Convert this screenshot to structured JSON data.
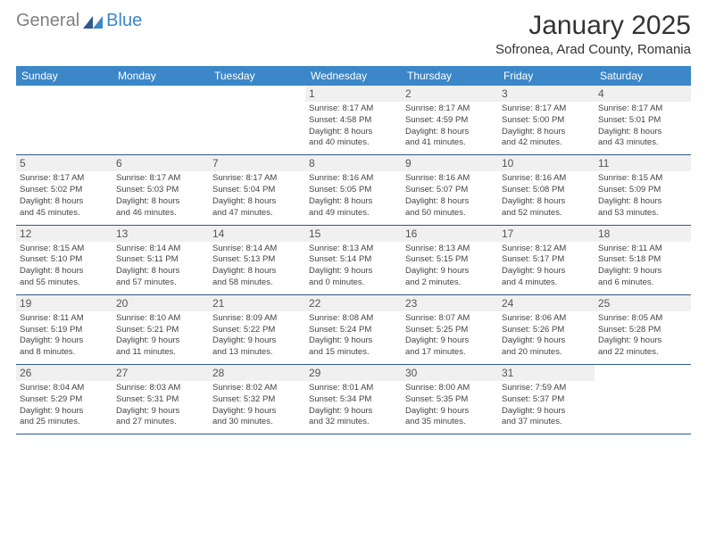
{
  "logo": {
    "general": "General",
    "blue": "Blue"
  },
  "title": "January 2025",
  "location": "Sofronea, Arad County, Romania",
  "weekdays": [
    "Sunday",
    "Monday",
    "Tuesday",
    "Wednesday",
    "Thursday",
    "Friday",
    "Saturday"
  ],
  "colors": {
    "header_blue": "#3b87c8",
    "divider": "#2d5a8a",
    "cell_bg": "#f0f0f0",
    "text": "#333333"
  },
  "weeks": [
    [
      {
        "day": "",
        "lines": []
      },
      {
        "day": "",
        "lines": []
      },
      {
        "day": "",
        "lines": []
      },
      {
        "day": "1",
        "lines": [
          "Sunrise: 8:17 AM",
          "Sunset: 4:58 PM",
          "Daylight: 8 hours",
          "and 40 minutes."
        ]
      },
      {
        "day": "2",
        "lines": [
          "Sunrise: 8:17 AM",
          "Sunset: 4:59 PM",
          "Daylight: 8 hours",
          "and 41 minutes."
        ]
      },
      {
        "day": "3",
        "lines": [
          "Sunrise: 8:17 AM",
          "Sunset: 5:00 PM",
          "Daylight: 8 hours",
          "and 42 minutes."
        ]
      },
      {
        "day": "4",
        "lines": [
          "Sunrise: 8:17 AM",
          "Sunset: 5:01 PM",
          "Daylight: 8 hours",
          "and 43 minutes."
        ]
      }
    ],
    [
      {
        "day": "5",
        "lines": [
          "Sunrise: 8:17 AM",
          "Sunset: 5:02 PM",
          "Daylight: 8 hours",
          "and 45 minutes."
        ]
      },
      {
        "day": "6",
        "lines": [
          "Sunrise: 8:17 AM",
          "Sunset: 5:03 PM",
          "Daylight: 8 hours",
          "and 46 minutes."
        ]
      },
      {
        "day": "7",
        "lines": [
          "Sunrise: 8:17 AM",
          "Sunset: 5:04 PM",
          "Daylight: 8 hours",
          "and 47 minutes."
        ]
      },
      {
        "day": "8",
        "lines": [
          "Sunrise: 8:16 AM",
          "Sunset: 5:05 PM",
          "Daylight: 8 hours",
          "and 49 minutes."
        ]
      },
      {
        "day": "9",
        "lines": [
          "Sunrise: 8:16 AM",
          "Sunset: 5:07 PM",
          "Daylight: 8 hours",
          "and 50 minutes."
        ]
      },
      {
        "day": "10",
        "lines": [
          "Sunrise: 8:16 AM",
          "Sunset: 5:08 PM",
          "Daylight: 8 hours",
          "and 52 minutes."
        ]
      },
      {
        "day": "11",
        "lines": [
          "Sunrise: 8:15 AM",
          "Sunset: 5:09 PM",
          "Daylight: 8 hours",
          "and 53 minutes."
        ]
      }
    ],
    [
      {
        "day": "12",
        "lines": [
          "Sunrise: 8:15 AM",
          "Sunset: 5:10 PM",
          "Daylight: 8 hours",
          "and 55 minutes."
        ]
      },
      {
        "day": "13",
        "lines": [
          "Sunrise: 8:14 AM",
          "Sunset: 5:11 PM",
          "Daylight: 8 hours",
          "and 57 minutes."
        ]
      },
      {
        "day": "14",
        "lines": [
          "Sunrise: 8:14 AM",
          "Sunset: 5:13 PM",
          "Daylight: 8 hours",
          "and 58 minutes."
        ]
      },
      {
        "day": "15",
        "lines": [
          "Sunrise: 8:13 AM",
          "Sunset: 5:14 PM",
          "Daylight: 9 hours",
          "and 0 minutes."
        ]
      },
      {
        "day": "16",
        "lines": [
          "Sunrise: 8:13 AM",
          "Sunset: 5:15 PM",
          "Daylight: 9 hours",
          "and 2 minutes."
        ]
      },
      {
        "day": "17",
        "lines": [
          "Sunrise: 8:12 AM",
          "Sunset: 5:17 PM",
          "Daylight: 9 hours",
          "and 4 minutes."
        ]
      },
      {
        "day": "18",
        "lines": [
          "Sunrise: 8:11 AM",
          "Sunset: 5:18 PM",
          "Daylight: 9 hours",
          "and 6 minutes."
        ]
      }
    ],
    [
      {
        "day": "19",
        "lines": [
          "Sunrise: 8:11 AM",
          "Sunset: 5:19 PM",
          "Daylight: 9 hours",
          "and 8 minutes."
        ]
      },
      {
        "day": "20",
        "lines": [
          "Sunrise: 8:10 AM",
          "Sunset: 5:21 PM",
          "Daylight: 9 hours",
          "and 11 minutes."
        ]
      },
      {
        "day": "21",
        "lines": [
          "Sunrise: 8:09 AM",
          "Sunset: 5:22 PM",
          "Daylight: 9 hours",
          "and 13 minutes."
        ]
      },
      {
        "day": "22",
        "lines": [
          "Sunrise: 8:08 AM",
          "Sunset: 5:24 PM",
          "Daylight: 9 hours",
          "and 15 minutes."
        ]
      },
      {
        "day": "23",
        "lines": [
          "Sunrise: 8:07 AM",
          "Sunset: 5:25 PM",
          "Daylight: 9 hours",
          "and 17 minutes."
        ]
      },
      {
        "day": "24",
        "lines": [
          "Sunrise: 8:06 AM",
          "Sunset: 5:26 PM",
          "Daylight: 9 hours",
          "and 20 minutes."
        ]
      },
      {
        "day": "25",
        "lines": [
          "Sunrise: 8:05 AM",
          "Sunset: 5:28 PM",
          "Daylight: 9 hours",
          "and 22 minutes."
        ]
      }
    ],
    [
      {
        "day": "26",
        "lines": [
          "Sunrise: 8:04 AM",
          "Sunset: 5:29 PM",
          "Daylight: 9 hours",
          "and 25 minutes."
        ]
      },
      {
        "day": "27",
        "lines": [
          "Sunrise: 8:03 AM",
          "Sunset: 5:31 PM",
          "Daylight: 9 hours",
          "and 27 minutes."
        ]
      },
      {
        "day": "28",
        "lines": [
          "Sunrise: 8:02 AM",
          "Sunset: 5:32 PM",
          "Daylight: 9 hours",
          "and 30 minutes."
        ]
      },
      {
        "day": "29",
        "lines": [
          "Sunrise: 8:01 AM",
          "Sunset: 5:34 PM",
          "Daylight: 9 hours",
          "and 32 minutes."
        ]
      },
      {
        "day": "30",
        "lines": [
          "Sunrise: 8:00 AM",
          "Sunset: 5:35 PM",
          "Daylight: 9 hours",
          "and 35 minutes."
        ]
      },
      {
        "day": "31",
        "lines": [
          "Sunrise: 7:59 AM",
          "Sunset: 5:37 PM",
          "Daylight: 9 hours",
          "and 37 minutes."
        ]
      },
      {
        "day": "",
        "lines": []
      }
    ]
  ]
}
